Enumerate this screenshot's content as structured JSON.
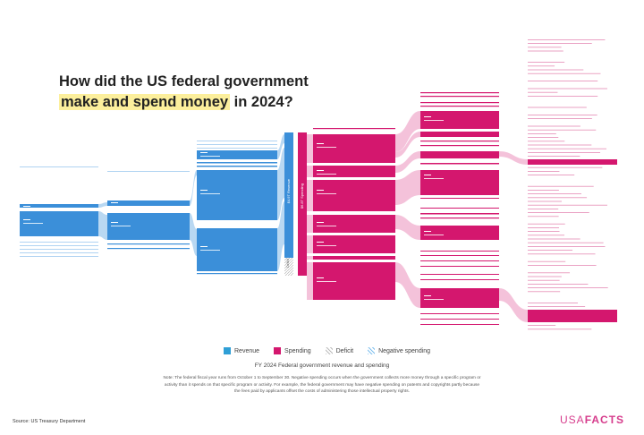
{
  "title": {
    "line1": "How did the US federal government",
    "highlight": "make and spend money",
    "line2_end": " in 2024?"
  },
  "nodes": {
    "revenue_total": "$4.9T Revenue",
    "spending_total": "$6.8T Spending",
    "deficit": "Deficit"
  },
  "legend": [
    {
      "label": "Revenue",
      "color": "#2f8fd6"
    },
    {
      "label": "Spending",
      "color": "#d4176e"
    },
    {
      "label": "Deficit",
      "color": "#cccccc"
    },
    {
      "label": "Negative spending",
      "color": "#9fd0f0"
    }
  ],
  "subtitle": "FY 2024 Federal government revenue and spending",
  "note": "Note: The federal fiscal year runs from October 1 to September 30. Negative spending occurs when the government collects more money through a specific program or activity than it spends on that specific program or activity. For example, the federal government may have negative spending on patents and copyrights partly because the fees paid by applicants offset the costs of administering those intellectual property rights.",
  "source": "Source: US Treasury Department",
  "logo": {
    "part1": "USA",
    "part2": "FACTS"
  },
  "colors": {
    "revenue": "#3b8fd9",
    "revenue_flow": "#b9d8f2",
    "spending": "#d4176e",
    "spending_flow": "#f4c2da",
    "highlight": "#fcef9c"
  }
}
